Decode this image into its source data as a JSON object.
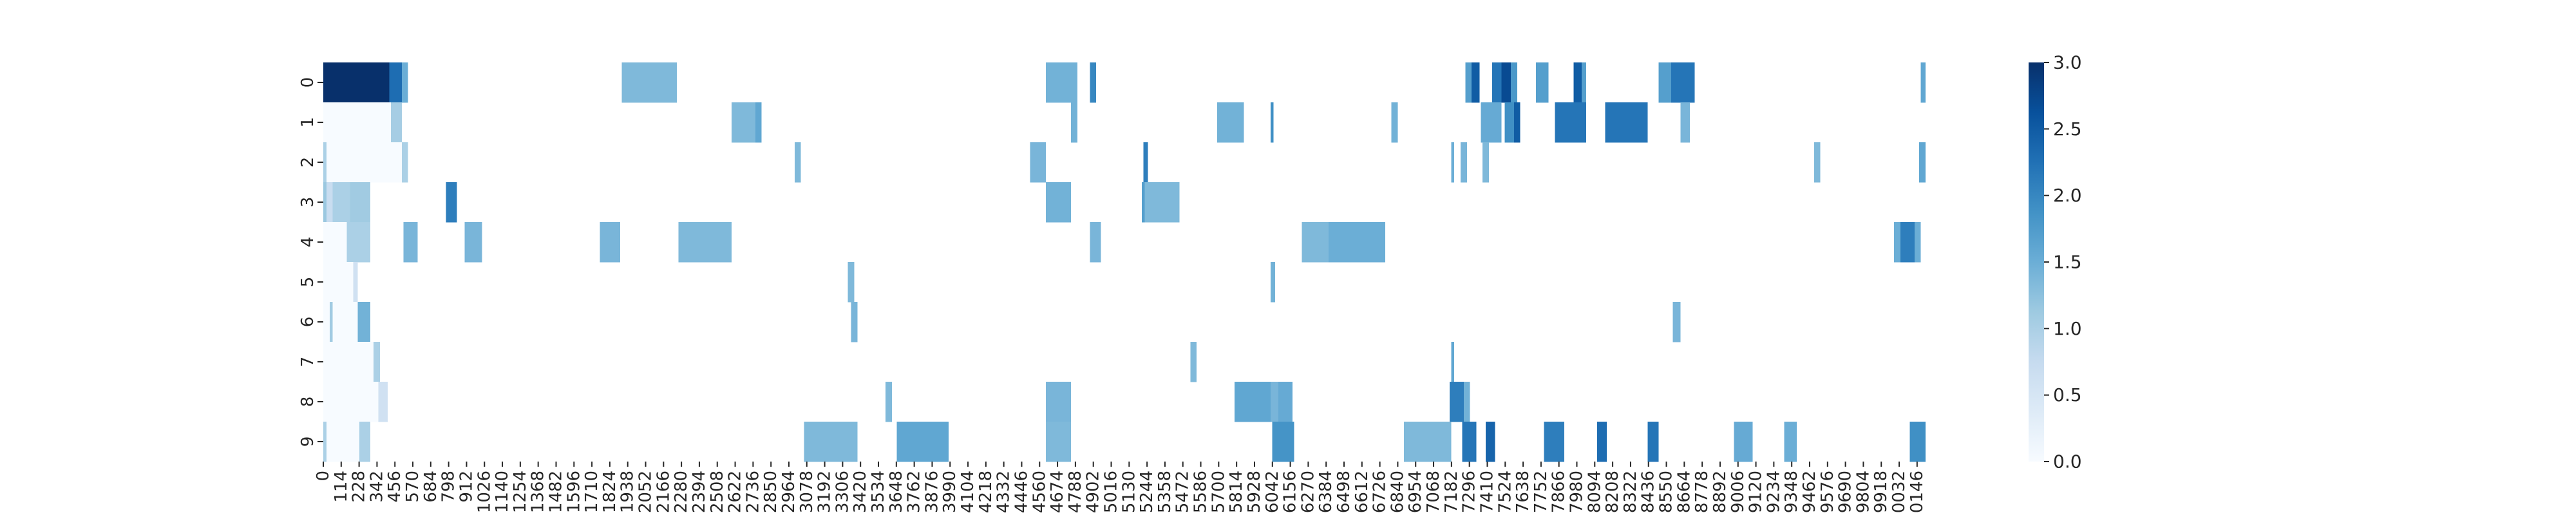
{
  "chart_data": {
    "type": "heatmap",
    "title": "",
    "xlabel": "",
    "ylabel": "",
    "rows": [
      "0",
      "1",
      "2",
      "3",
      "4",
      "5",
      "6",
      "7",
      "8",
      "9"
    ],
    "x_range": [
      0,
      10200
    ],
    "x_tick_step": 114,
    "x_tick_labels": [
      "0",
      "114",
      "228",
      "342",
      "456",
      "570",
      "684",
      "798",
      "912",
      "1026",
      "1140",
      "1254",
      "1368",
      "1482",
      "1596",
      "1710",
      "1824",
      "1938",
      "2052",
      "2166",
      "2280",
      "2394",
      "2508",
      "2622",
      "2736",
      "2850",
      "2964",
      "3078",
      "3192",
      "3306",
      "3420",
      "3534",
      "3648",
      "3762",
      "3876",
      "3990",
      "4104",
      "4218",
      "4332",
      "4446",
      "4560",
      "4674",
      "4788",
      "4902",
      "5016",
      "5130",
      "5244",
      "5358",
      "5472",
      "5586",
      "5700",
      "5814",
      "5928",
      "6042",
      "6156",
      "6270",
      "6384",
      "6498",
      "6612",
      "6726",
      "6840",
      "6954",
      "7068",
      "7182",
      "7296",
      "7410",
      "7524",
      "7638",
      "7752",
      "7866",
      "7980",
      "8094",
      "8208",
      "8322",
      "8436",
      "8550",
      "8664",
      "8778",
      "8892",
      "9006",
      "9120",
      "9234",
      "9348",
      "9462",
      "9576",
      "9690",
      "9804",
      "9918",
      "0032",
      "0146"
    ],
    "colorbar": {
      "min": 0.0,
      "max": 3.0,
      "ticks": [
        "0.0",
        "0.5",
        "1.0",
        "1.5",
        "2.0",
        "2.5",
        "3.0"
      ],
      "colormap": "Blues"
    },
    "background_value": 1.25,
    "segments": [
      {
        "row": 0,
        "x0": 0,
        "x1": 420,
        "v": 3.0
      },
      {
        "row": 0,
        "x0": 420,
        "x1": 500,
        "v": 2.3
      },
      {
        "row": 0,
        "x0": 500,
        "x1": 540,
        "v": 1.5
      },
      {
        "row": 0,
        "x0": 1900,
        "x1": 2250,
        "v": 1.35
      },
      {
        "row": 0,
        "x0": 4600,
        "x1": 4800,
        "v": 1.45
      },
      {
        "row": 0,
        "x0": 4880,
        "x1": 4920,
        "v": 2.0
      },
      {
        "row": 0,
        "x0": 7270,
        "x1": 7310,
        "v": 1.7
      },
      {
        "row": 0,
        "x0": 7310,
        "x1": 7360,
        "v": 2.5
      },
      {
        "row": 0,
        "x0": 7440,
        "x1": 7500,
        "v": 2.2
      },
      {
        "row": 0,
        "x0": 7500,
        "x1": 7560,
        "v": 2.7
      },
      {
        "row": 0,
        "x0": 7560,
        "x1": 7600,
        "v": 1.8
      },
      {
        "row": 0,
        "x0": 7720,
        "x1": 7800,
        "v": 1.7
      },
      {
        "row": 0,
        "x0": 7960,
        "x1": 8010,
        "v": 2.5
      },
      {
        "row": 0,
        "x0": 8010,
        "x1": 8040,
        "v": 1.7
      },
      {
        "row": 0,
        "x0": 8500,
        "x1": 8580,
        "v": 1.7
      },
      {
        "row": 0,
        "x0": 8580,
        "x1": 8730,
        "v": 2.2
      },
      {
        "row": 0,
        "x0": 10170,
        "x1": 10200,
        "v": 1.6
      },
      {
        "row": 1,
        "x0": 0,
        "x1": 430,
        "v": 0.0
      },
      {
        "row": 1,
        "x0": 430,
        "x1": 500,
        "v": 1.05
      },
      {
        "row": 1,
        "x0": 2600,
        "x1": 2750,
        "v": 1.35
      },
      {
        "row": 1,
        "x0": 2750,
        "x1": 2790,
        "v": 1.6
      },
      {
        "row": 1,
        "x0": 4760,
        "x1": 4800,
        "v": 1.45
      },
      {
        "row": 1,
        "x0": 5690,
        "x1": 5860,
        "v": 1.45
      },
      {
        "row": 1,
        "x0": 6030,
        "x1": 6050,
        "v": 1.9
      },
      {
        "row": 1,
        "x0": 6800,
        "x1": 6840,
        "v": 1.45
      },
      {
        "row": 1,
        "x0": 7370,
        "x1": 7500,
        "v": 1.55
      },
      {
        "row": 1,
        "x0": 7520,
        "x1": 7580,
        "v": 1.9
      },
      {
        "row": 1,
        "x0": 7580,
        "x1": 7620,
        "v": 2.5
      },
      {
        "row": 1,
        "x0": 7840,
        "x1": 8040,
        "v": 2.2
      },
      {
        "row": 1,
        "x0": 8160,
        "x1": 8430,
        "v": 2.2
      },
      {
        "row": 1,
        "x0": 8640,
        "x1": 8700,
        "v": 1.4
      },
      {
        "row": 2,
        "x0": 0,
        "x1": 20,
        "v": 1.0
      },
      {
        "row": 2,
        "x0": 20,
        "x1": 500,
        "v": 0.0
      },
      {
        "row": 2,
        "x0": 500,
        "x1": 540,
        "v": 1.0
      },
      {
        "row": 2,
        "x0": 3000,
        "x1": 3040,
        "v": 1.35
      },
      {
        "row": 2,
        "x0": 4500,
        "x1": 4600,
        "v": 1.4
      },
      {
        "row": 2,
        "x0": 5220,
        "x1": 5250,
        "v": 2.1
      },
      {
        "row": 2,
        "x0": 7180,
        "x1": 7200,
        "v": 1.5
      },
      {
        "row": 2,
        "x0": 7240,
        "x1": 7280,
        "v": 1.4
      },
      {
        "row": 2,
        "x0": 7380,
        "x1": 7420,
        "v": 1.35
      },
      {
        "row": 2,
        "x0": 9490,
        "x1": 9530,
        "v": 1.35
      },
      {
        "row": 2,
        "x0": 10160,
        "x1": 10200,
        "v": 1.6
      },
      {
        "row": 3,
        "x0": 0,
        "x1": 20,
        "v": 1.15
      },
      {
        "row": 3,
        "x0": 20,
        "x1": 60,
        "v": 0.7
      },
      {
        "row": 3,
        "x0": 60,
        "x1": 170,
        "v": 1.0
      },
      {
        "row": 3,
        "x0": 170,
        "x1": 300,
        "v": 1.1
      },
      {
        "row": 3,
        "x0": 780,
        "x1": 850,
        "v": 2.1
      },
      {
        "row": 3,
        "x0": 4600,
        "x1": 4760,
        "v": 1.45
      },
      {
        "row": 3,
        "x0": 5210,
        "x1": 5230,
        "v": 1.7
      },
      {
        "row": 3,
        "x0": 5230,
        "x1": 5450,
        "v": 1.35
      },
      {
        "row": 4,
        "x0": 0,
        "x1": 150,
        "v": 0.0
      },
      {
        "row": 4,
        "x0": 150,
        "x1": 300,
        "v": 1.0
      },
      {
        "row": 4,
        "x0": 510,
        "x1": 600,
        "v": 1.4
      },
      {
        "row": 4,
        "x0": 900,
        "x1": 1010,
        "v": 1.4
      },
      {
        "row": 4,
        "x0": 1760,
        "x1": 1890,
        "v": 1.4
      },
      {
        "row": 4,
        "x0": 2260,
        "x1": 2600,
        "v": 1.35
      },
      {
        "row": 4,
        "x0": 4880,
        "x1": 4950,
        "v": 1.4
      },
      {
        "row": 4,
        "x0": 6230,
        "x1": 6400,
        "v": 1.35
      },
      {
        "row": 4,
        "x0": 6400,
        "x1": 6760,
        "v": 1.5
      },
      {
        "row": 4,
        "x0": 10000,
        "x1": 10040,
        "v": 1.5
      },
      {
        "row": 4,
        "x0": 10040,
        "x1": 10130,
        "v": 2.1
      },
      {
        "row": 4,
        "x0": 10130,
        "x1": 10170,
        "v": 1.5
      },
      {
        "row": 5,
        "x0": 0,
        "x1": 190,
        "v": 0.0
      },
      {
        "row": 5,
        "x0": 190,
        "x1": 220,
        "v": 0.6
      },
      {
        "row": 5,
        "x0": 3340,
        "x1": 3380,
        "v": 1.35
      },
      {
        "row": 5,
        "x0": 6030,
        "x1": 6060,
        "v": 1.45
      },
      {
        "row": 6,
        "x0": 0,
        "x1": 40,
        "v": 0.0
      },
      {
        "row": 6,
        "x0": 40,
        "x1": 60,
        "v": 1.1
      },
      {
        "row": 6,
        "x0": 60,
        "x1": 220,
        "v": 0.0
      },
      {
        "row": 6,
        "x0": 220,
        "x1": 300,
        "v": 1.45
      },
      {
        "row": 6,
        "x0": 3360,
        "x1": 3400,
        "v": 1.4
      },
      {
        "row": 6,
        "x0": 8590,
        "x1": 8640,
        "v": 1.4
      },
      {
        "row": 7,
        "x0": 0,
        "x1": 320,
        "v": 0.0
      },
      {
        "row": 7,
        "x0": 320,
        "x1": 360,
        "v": 1.0
      },
      {
        "row": 7,
        "x0": 5520,
        "x1": 5560,
        "v": 1.35
      },
      {
        "row": 7,
        "x0": 7180,
        "x1": 7200,
        "v": 1.6
      },
      {
        "row": 8,
        "x0": 0,
        "x1": 350,
        "v": 0.0
      },
      {
        "row": 8,
        "x0": 350,
        "x1": 410,
        "v": 0.6
      },
      {
        "row": 8,
        "x0": 3580,
        "x1": 3620,
        "v": 1.35
      },
      {
        "row": 8,
        "x0": 4600,
        "x1": 4760,
        "v": 1.4
      },
      {
        "row": 8,
        "x0": 5800,
        "x1": 6030,
        "v": 1.6
      },
      {
        "row": 8,
        "x0": 6030,
        "x1": 6080,
        "v": 1.4
      },
      {
        "row": 8,
        "x0": 6080,
        "x1": 6170,
        "v": 1.55
      },
      {
        "row": 8,
        "x0": 7170,
        "x1": 7260,
        "v": 2.1
      },
      {
        "row": 8,
        "x0": 7260,
        "x1": 7300,
        "v": 1.45
      },
      {
        "row": 9,
        "x0": 0,
        "x1": 20,
        "v": 1.0
      },
      {
        "row": 9,
        "x0": 20,
        "x1": 230,
        "v": 0.0
      },
      {
        "row": 9,
        "x0": 230,
        "x1": 300,
        "v": 1.0
      },
      {
        "row": 9,
        "x0": 3060,
        "x1": 3400,
        "v": 1.35
      },
      {
        "row": 9,
        "x0": 3650,
        "x1": 3980,
        "v": 1.6
      },
      {
        "row": 9,
        "x0": 4600,
        "x1": 4760,
        "v": 1.35
      },
      {
        "row": 9,
        "x0": 6040,
        "x1": 6180,
        "v": 1.85
      },
      {
        "row": 9,
        "x0": 6880,
        "x1": 7180,
        "v": 1.35
      },
      {
        "row": 9,
        "x0": 7250,
        "x1": 7340,
        "v": 2.2
      },
      {
        "row": 9,
        "x0": 7400,
        "x1": 7460,
        "v": 2.4
      },
      {
        "row": 9,
        "x0": 7770,
        "x1": 7900,
        "v": 2.1
      },
      {
        "row": 9,
        "x0": 8110,
        "x1": 8170,
        "v": 2.3
      },
      {
        "row": 9,
        "x0": 8430,
        "x1": 8500,
        "v": 2.2
      },
      {
        "row": 9,
        "x0": 8980,
        "x1": 9100,
        "v": 1.55
      },
      {
        "row": 9,
        "x0": 9300,
        "x1": 9380,
        "v": 1.5
      },
      {
        "row": 9,
        "x0": 10100,
        "x1": 10200,
        "v": 1.9
      }
    ]
  }
}
